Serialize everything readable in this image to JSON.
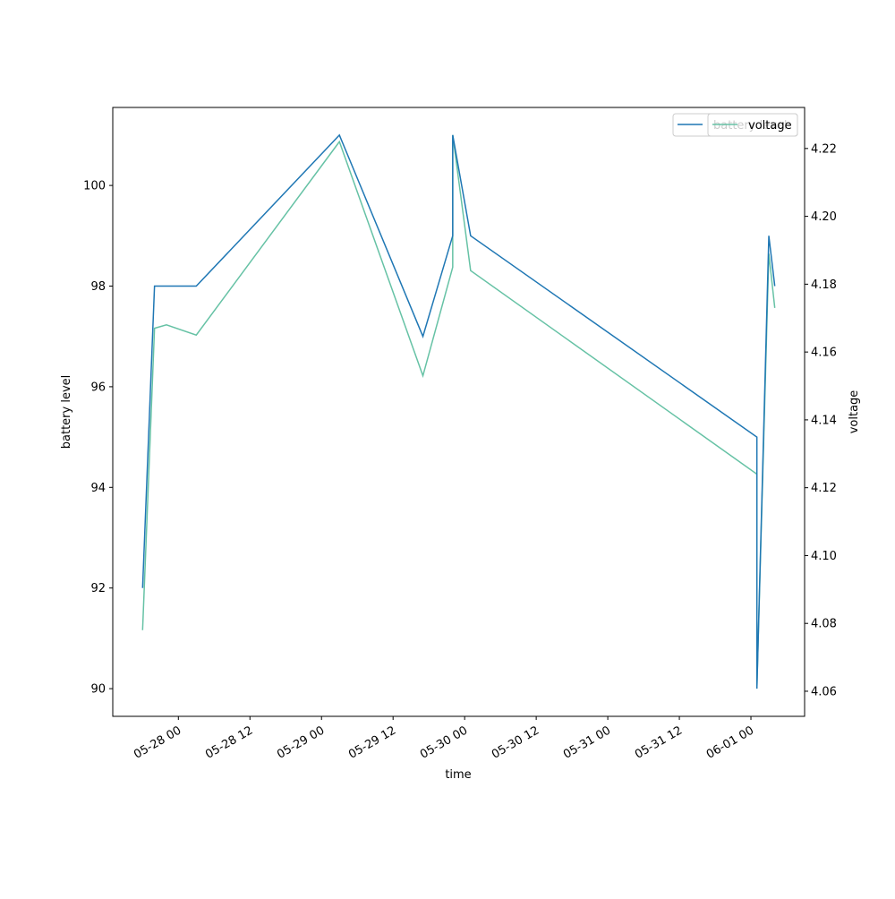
{
  "chart_data": {
    "type": "line",
    "x_label": "time",
    "y_label": "battery level",
    "y2_label": "voltage",
    "series": [
      {
        "name": "battery level",
        "color": "#1f77b4",
        "x": [
          "05-27 18",
          "05-27 20",
          "05-28 03",
          "05-29 03",
          "05-29 17",
          "05-29 22",
          "05-29 22",
          "05-30 01",
          "06-01 01",
          "06-01 01",
          "06-01 03",
          "06-01 04"
        ],
        "values": [
          92,
          98,
          98,
          101,
          97,
          99,
          101,
          99,
          95,
          90,
          99,
          98
        ]
      },
      {
        "name": "voltage",
        "color": "#66c2a5",
        "axis": "y2",
        "x": [
          "05-27 18",
          "05-27 20",
          "05-27 22",
          "05-28 03",
          "05-29 03",
          "05-29 17",
          "05-29 22",
          "05-29 22",
          "05-30 01",
          "06-01 01",
          "06-01 01",
          "06-01 03",
          "06-01 04"
        ],
        "values": [
          4.078,
          4.167,
          4.168,
          4.165,
          4.222,
          4.153,
          4.185,
          4.224,
          4.184,
          4.124,
          4.061,
          4.189,
          4.173
        ]
      }
    ],
    "xlim": [
      "05-27 13",
      "06-01 09"
    ],
    "xticks": [
      "05-28 00",
      "05-28 12",
      "05-29 00",
      "05-29 12",
      "05-30 00",
      "05-30 12",
      "05-31 00",
      "05-31 12",
      "06-01 00"
    ],
    "ylim": [
      89.45,
      101.55
    ],
    "yticks": [
      90,
      92,
      94,
      96,
      98,
      100
    ],
    "y2lim": [
      4.0526,
      4.2321
    ],
    "y2ticks": [
      4.06,
      4.08,
      {
        "value": 4.1,
        "label": "4.10"
      },
      4.12,
      4.14,
      4.16,
      4.18,
      {
        "value": 4.2,
        "label": "4.20"
      },
      4.22
    ],
    "legend": "upper right"
  }
}
